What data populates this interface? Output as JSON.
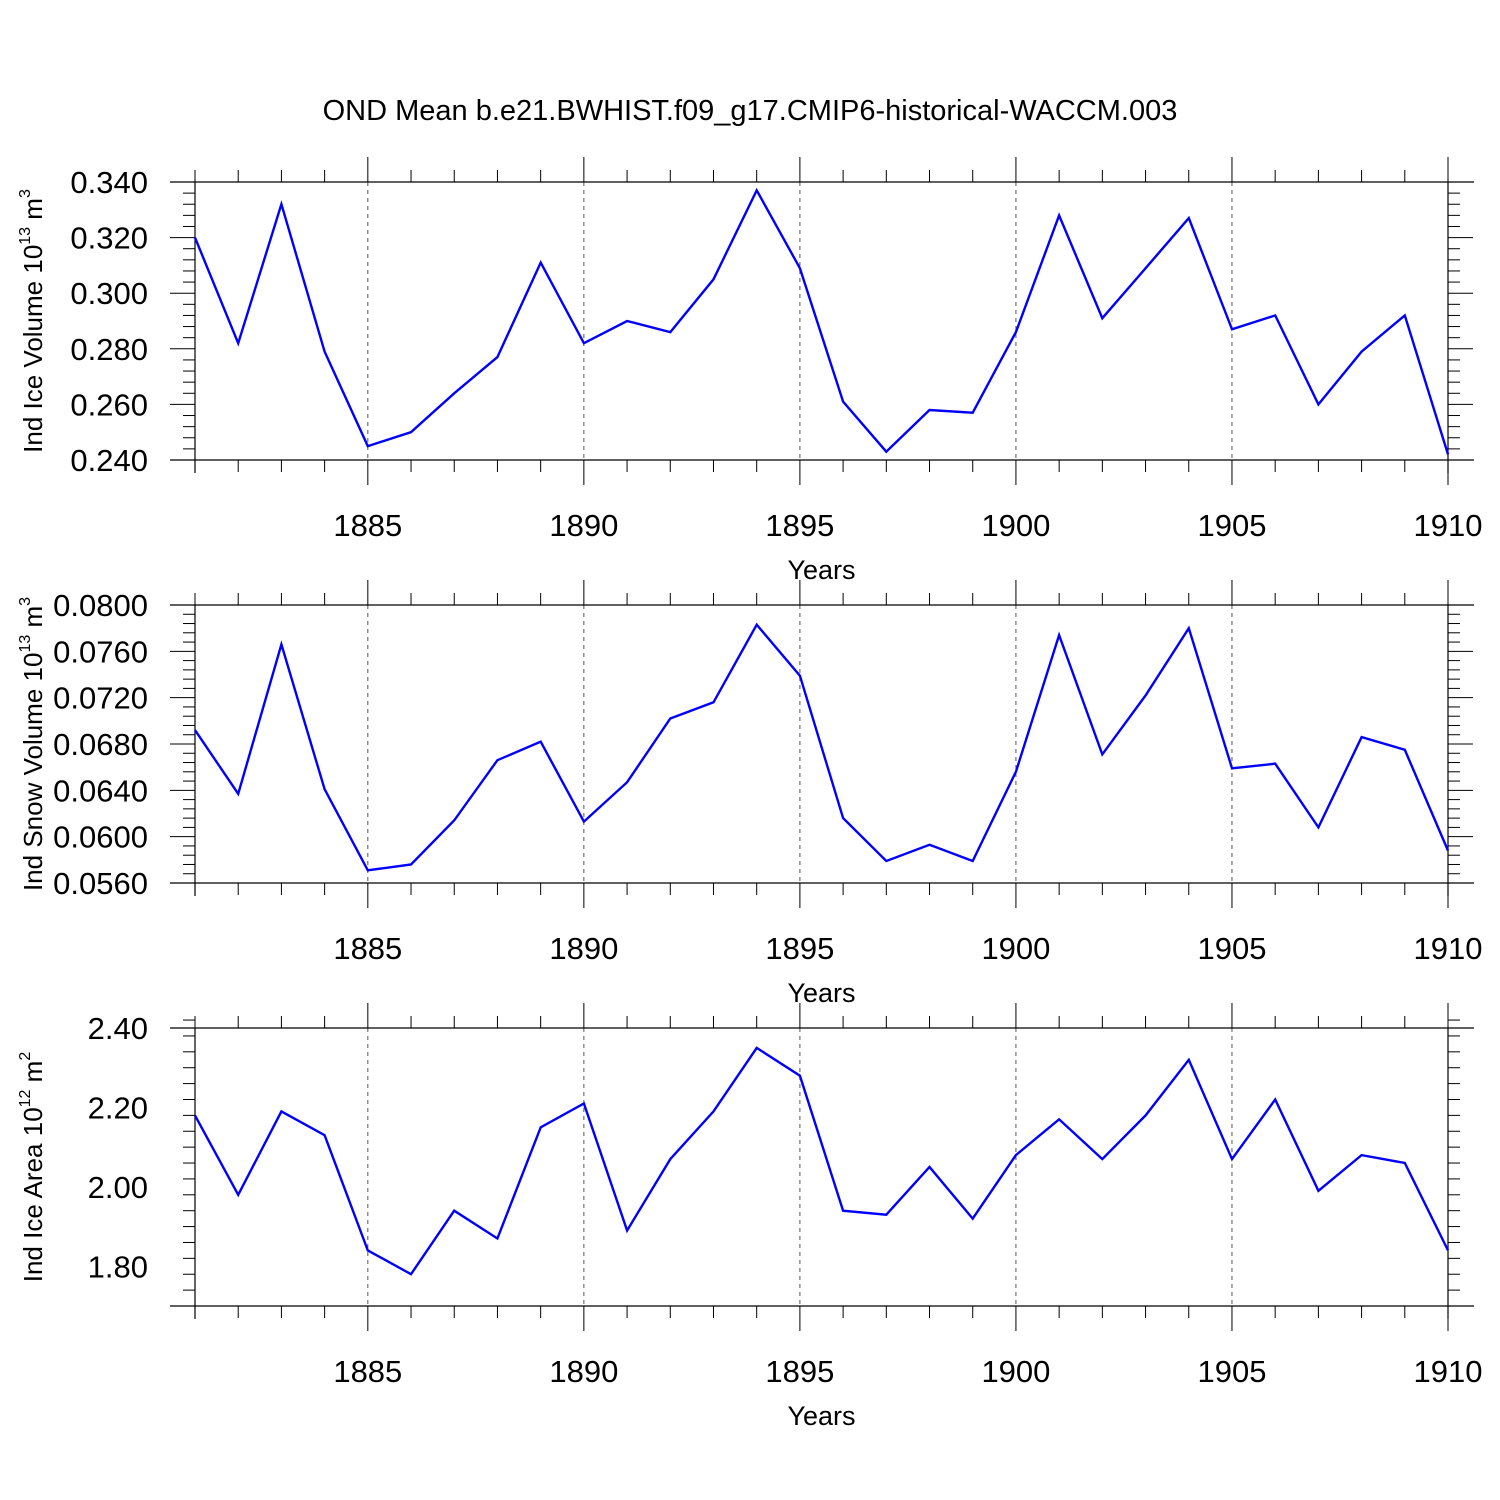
{
  "title": "OND Mean b.e21.BWHIST.f09_g17.CMIP6-historical-WACCM.003",
  "colors": {
    "line": "#0000ff",
    "axis": "#000000",
    "grid": "#555555",
    "background": "#ffffff"
  },
  "chart_data": [
    {
      "type": "line",
      "ylabel": {
        "main": "Ind Ice Volume 10",
        "exponent": "13",
        "unit": " m",
        "unit_exponent": "3"
      },
      "xlabel": "Years",
      "xlim": [
        1881,
        1910
      ],
      "ylim": [
        0.24,
        0.34
      ],
      "y_ticks": [
        0.24,
        0.26,
        0.28,
        0.3,
        0.32,
        0.34
      ],
      "y_tick_labels": [
        "0.240",
        "0.260",
        "0.280",
        "0.300",
        "0.320",
        "0.340"
      ],
      "x_ticks": [
        1885,
        1890,
        1895,
        1900,
        1905,
        1910
      ],
      "x_tick_labels": [
        "1885",
        "1890",
        "1895",
        "1900",
        "1905",
        "1910"
      ],
      "vgrid": [
        1885,
        1890,
        1895,
        1900,
        1905
      ],
      "series": [
        {
          "name": "Ind Ice Volume",
          "x": [
            1881,
            1882,
            1883,
            1884,
            1885,
            1886,
            1887,
            1888,
            1889,
            1890,
            1891,
            1892,
            1893,
            1894,
            1895,
            1896,
            1897,
            1898,
            1899,
            1900,
            1901,
            1902,
            1903,
            1904,
            1905,
            1906,
            1907,
            1908,
            1909,
            1910
          ],
          "values": [
            0.32,
            0.282,
            0.332,
            0.279,
            0.245,
            0.25,
            0.264,
            0.277,
            0.311,
            0.282,
            0.29,
            0.286,
            0.305,
            0.337,
            0.309,
            0.261,
            0.243,
            0.258,
            0.257,
            0.286,
            0.328,
            0.291,
            0.309,
            0.327,
            0.287,
            0.292,
            0.26,
            0.279,
            0.292,
            0.242
          ]
        }
      ]
    },
    {
      "type": "line",
      "ylabel": {
        "main": "Ind Snow Volume 10",
        "exponent": "13",
        "unit": " m",
        "unit_exponent": "3"
      },
      "xlabel": "Years",
      "xlim": [
        1881,
        1910
      ],
      "ylim": [
        0.056,
        0.08
      ],
      "y_ticks": [
        0.056,
        0.06,
        0.064,
        0.068,
        0.072,
        0.076,
        0.08
      ],
      "y_tick_labels": [
        "0.0560",
        "0.0600",
        "0.0640",
        "0.0680",
        "0.0720",
        "0.0760",
        "0.0800"
      ],
      "x_ticks": [
        1885,
        1890,
        1895,
        1900,
        1905,
        1910
      ],
      "x_tick_labels": [
        "1885",
        "1890",
        "1895",
        "1900",
        "1905",
        "1910"
      ],
      "vgrid": [
        1885,
        1890,
        1895,
        1900,
        1905
      ],
      "series": [
        {
          "name": "Ind Snow Volume",
          "x": [
            1881,
            1882,
            1883,
            1884,
            1885,
            1886,
            1887,
            1888,
            1889,
            1890,
            1891,
            1892,
            1893,
            1894,
            1895,
            1896,
            1897,
            1898,
            1899,
            1900,
            1901,
            1902,
            1903,
            1904,
            1905,
            1906,
            1907,
            1908,
            1909,
            1910
          ],
          "values": [
            0.0692,
            0.0637,
            0.0766,
            0.0641,
            0.0571,
            0.0576,
            0.0614,
            0.0666,
            0.0682,
            0.0613,
            0.0647,
            0.0702,
            0.0716,
            0.0783,
            0.0739,
            0.0616,
            0.0579,
            0.0593,
            0.0579,
            0.0656,
            0.0774,
            0.0671,
            0.0722,
            0.078,
            0.0659,
            0.0663,
            0.0608,
            0.0686,
            0.0675,
            0.0588
          ]
        }
      ]
    },
    {
      "type": "line",
      "ylabel": {
        "main": "Ind Ice Area 10",
        "exponent": "12",
        "unit": " m",
        "unit_exponent": "2"
      },
      "xlabel": "Years",
      "xlim": [
        1881,
        1910
      ],
      "ylim": [
        1.7,
        2.4
      ],
      "y_ticks": [
        1.8,
        2.0,
        2.2,
        2.4
      ],
      "y_tick_labels": [
        "1.80",
        "2.00",
        "2.20",
        "2.40"
      ],
      "x_ticks": [
        1885,
        1890,
        1895,
        1900,
        1905,
        1910
      ],
      "x_tick_labels": [
        "1885",
        "1890",
        "1895",
        "1900",
        "1905",
        "1910"
      ],
      "vgrid": [
        1885,
        1890,
        1895,
        1900,
        1905
      ],
      "series": [
        {
          "name": "Ind Ice Area",
          "x": [
            1881,
            1882,
            1883,
            1884,
            1885,
            1886,
            1887,
            1888,
            1889,
            1890,
            1891,
            1892,
            1893,
            1894,
            1895,
            1896,
            1897,
            1898,
            1899,
            1900,
            1901,
            1902,
            1903,
            1904,
            1905,
            1906,
            1907,
            1908,
            1909,
            1910
          ],
          "values": [
            2.18,
            1.98,
            2.19,
            2.13,
            1.84,
            1.78,
            1.94,
            1.87,
            2.15,
            2.21,
            1.89,
            2.07,
            2.19,
            2.35,
            2.28,
            1.94,
            1.93,
            2.05,
            1.92,
            2.08,
            2.17,
            2.07,
            2.18,
            2.32,
            2.07,
            2.22,
            1.99,
            2.08,
            2.06,
            1.84
          ]
        }
      ]
    }
  ]
}
